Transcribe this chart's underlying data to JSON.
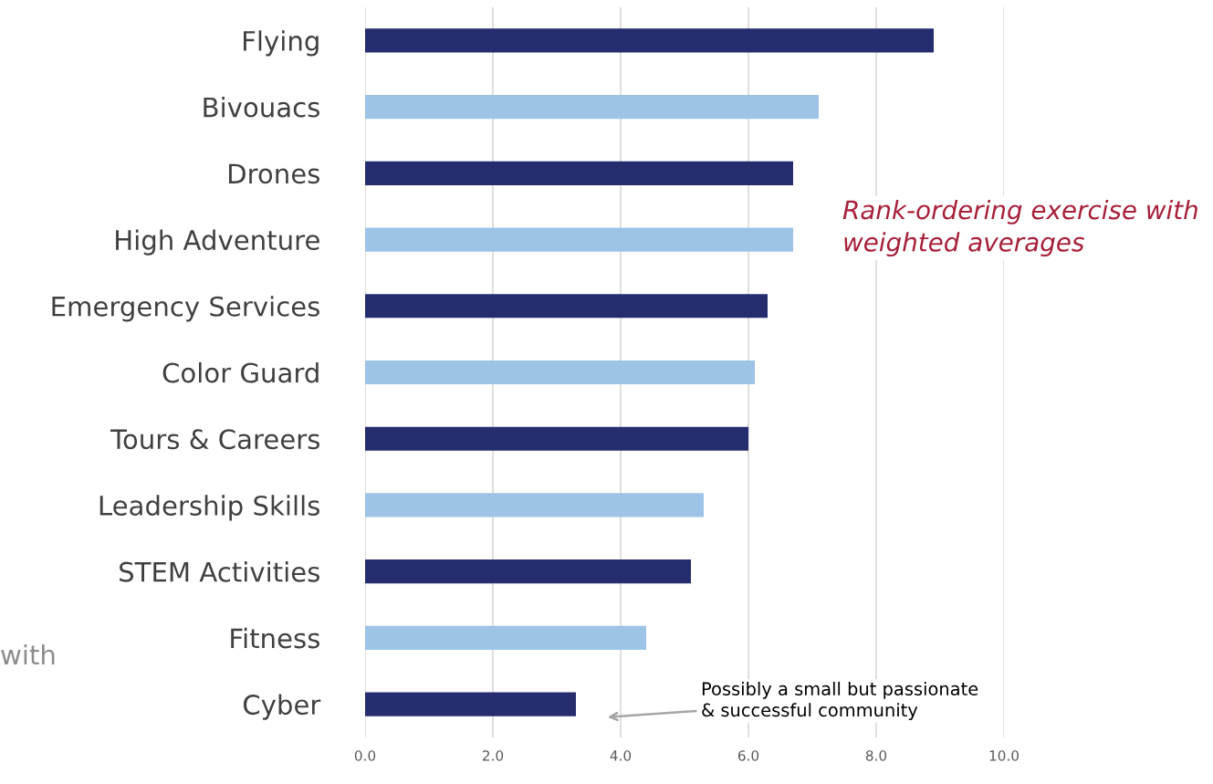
{
  "chart_data": {
    "type": "bar",
    "orientation": "horizontal",
    "categories": [
      "Flying",
      "Bivouacs",
      "Drones",
      "High Adventure",
      "Emergency Services",
      "Color Guard",
      "Tours & Careers",
      "Leadership Skills",
      "STEM Activities",
      "Fitness",
      "Cyber"
    ],
    "values": [
      8.9,
      7.1,
      6.7,
      6.7,
      6.3,
      6.1,
      6.0,
      5.3,
      5.1,
      4.4,
      3.3
    ],
    "colors": [
      "#252d6e",
      "#9dc3e6",
      "#252d6e",
      "#9dc3e6",
      "#252d6e",
      "#9dc3e6",
      "#252d6e",
      "#9dc3e6",
      "#252d6e",
      "#9dc3e6",
      "#252d6e"
    ],
    "xlim": [
      0,
      10
    ],
    "xticks": [
      {
        "value": 0,
        "label": "0.0"
      },
      {
        "value": 2,
        "label": "2.0"
      },
      {
        "value": 4,
        "label": "4.0"
      },
      {
        "value": 6,
        "label": "6.0"
      },
      {
        "value": 8,
        "label": "8.0"
      },
      {
        "value": 10,
        "label": "10.0"
      }
    ],
    "grid": "x",
    "annotations": [
      "Rank-ordering exercise with\nweighted averages",
      "Possibly a small but passionate\n& successful community",
      "with"
    ]
  }
}
